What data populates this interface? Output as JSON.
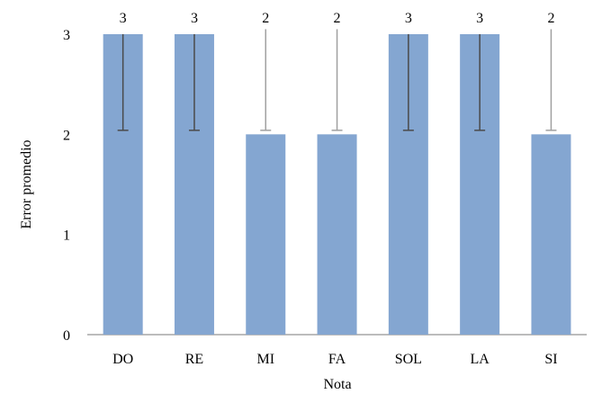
{
  "chart_data": {
    "type": "bar",
    "categories": [
      "DO",
      "RE",
      "MI",
      "FA",
      "SOL",
      "LA",
      "SI"
    ],
    "values": [
      3,
      3,
      2,
      2,
      3,
      3,
      2
    ],
    "data_labels": [
      "3",
      "3",
      "2",
      "2",
      "3",
      "3",
      "2"
    ],
    "error_low": [
      2.04,
      2.04,
      2.04,
      2.04,
      2.04,
      2.04,
      2.04
    ],
    "error_high": [
      3,
      3,
      3.05,
      3.05,
      3,
      3,
      3.05
    ],
    "xlabel": "Nota",
    "ylabel": "Error promedio",
    "ylim": [
      0,
      3
    ],
    "yticks": [
      "0",
      "1",
      "2",
      "3"
    ],
    "grid": false,
    "legend": "none",
    "bar_color": "#84A6D1",
    "error_bar_color_on_bar": "#4A4A4A",
    "error_bar_color_off_bar": "#A0A0A0"
  }
}
